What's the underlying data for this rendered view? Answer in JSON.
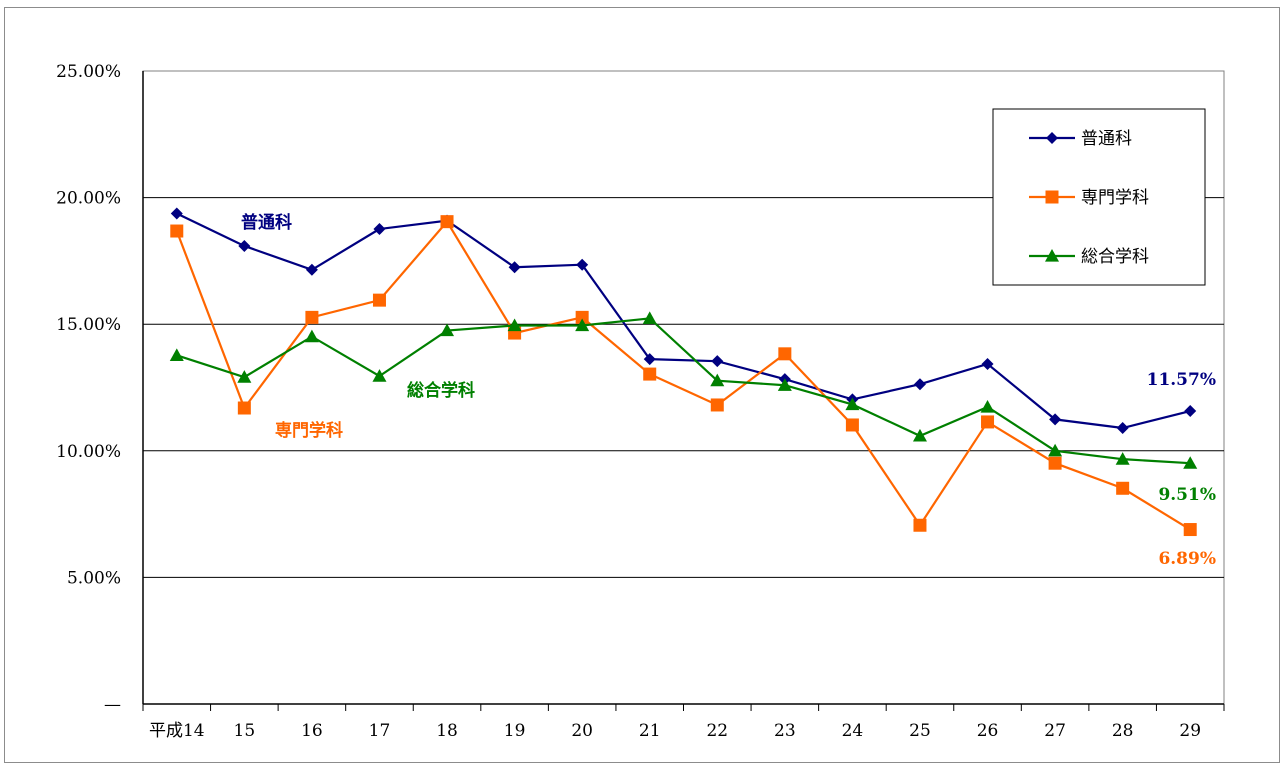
{
  "chart_data": {
    "type": "line",
    "categories": [
      "平成14",
      "15",
      "16",
      "17",
      "18",
      "19",
      "20",
      "21",
      "22",
      "23",
      "24",
      "25",
      "26",
      "27",
      "28",
      "29"
    ],
    "ylim": [
      0,
      25
    ],
    "yticks": [
      {
        "value": 25,
        "label": "25.00%"
      },
      {
        "value": 20,
        "label": "20.00%"
      },
      {
        "value": 15,
        "label": "15.00%"
      },
      {
        "value": 10,
        "label": "10.00%"
      },
      {
        "value": 5,
        "label": "5.00%"
      },
      {
        "value": 0,
        "label": "—"
      }
    ],
    "grid": true,
    "legend_position": "top-right",
    "series": [
      {
        "name": "普通科",
        "color": "#000080",
        "marker": "diamond",
        "values": [
          19.37,
          18.09,
          17.15,
          18.76,
          19.09,
          17.25,
          17.35,
          13.62,
          13.54,
          12.83,
          12.03,
          12.63,
          13.43,
          11.24,
          10.9,
          11.57
        ],
        "inline_label": "普通科",
        "end_label": "11.57%"
      },
      {
        "name": "専門学科",
        "color": "#FF6600",
        "marker": "square",
        "values": [
          18.68,
          11.69,
          15.27,
          15.95,
          19.05,
          14.65,
          15.27,
          13.03,
          11.81,
          13.83,
          11.02,
          7.06,
          11.14,
          9.51,
          8.52,
          6.89
        ],
        "inline_label": "専門学科",
        "end_label": "6.89%"
      },
      {
        "name": "総合学科",
        "color": "#008000",
        "marker": "triangle",
        "values": [
          13.77,
          12.91,
          14.51,
          12.95,
          14.75,
          14.95,
          14.95,
          15.23,
          12.77,
          12.59,
          11.83,
          10.59,
          11.73,
          10.0,
          9.67,
          9.51
        ],
        "inline_label": "総合学科",
        "end_label": "9.51%"
      }
    ]
  }
}
